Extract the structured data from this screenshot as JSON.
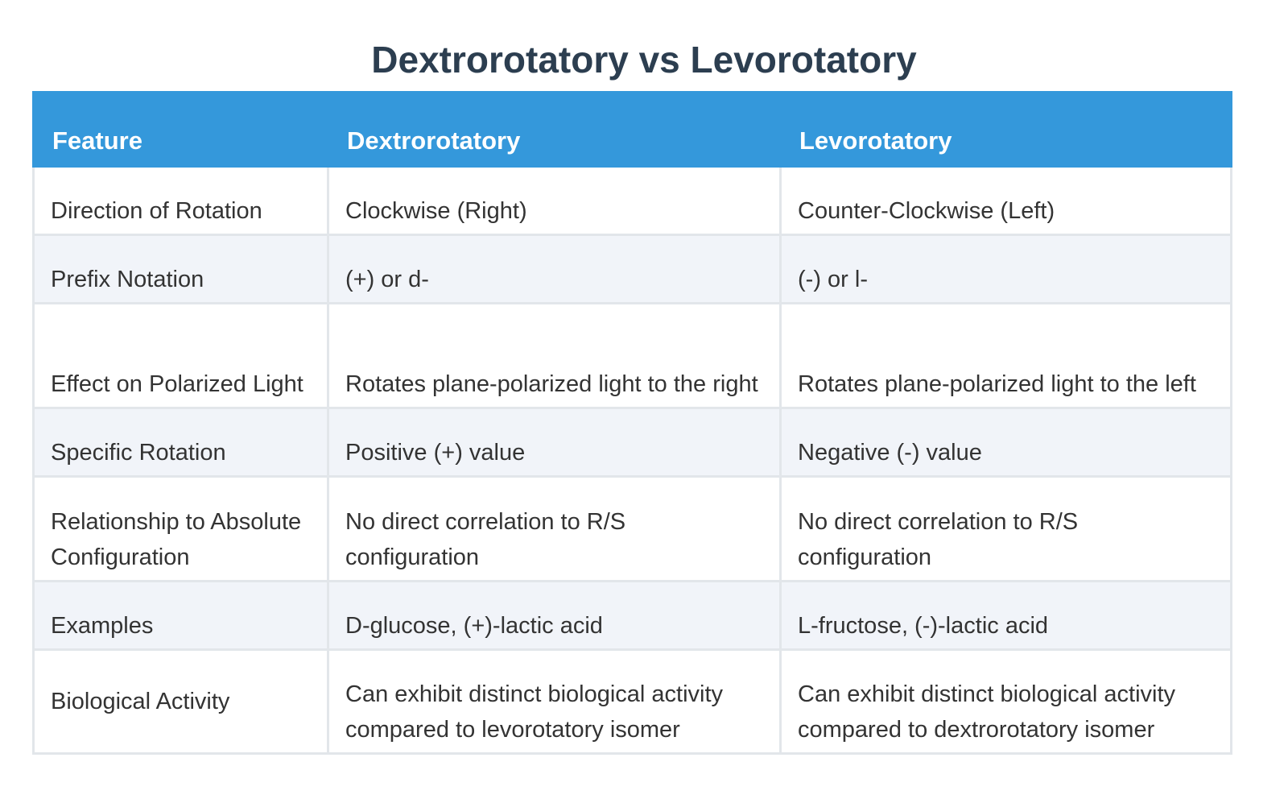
{
  "title": "Dextrorotatory vs Levorotatory",
  "table": {
    "headers": [
      "Feature",
      "Dextrorotatory",
      "Levorotatory"
    ],
    "rows": [
      [
        "Direction of Rotation",
        "Clockwise (Right)",
        "Counter-Clockwise (Left)"
      ],
      [
        "Prefix Notation",
        "(+) or d-",
        "(-) or l-"
      ],
      [
        "Effect on Polarized Light",
        "Rotates plane-polarized light to the right",
        "Rotates plane-polarized light to the left"
      ],
      [
        "Specific Rotation",
        "Positive (+) value",
        "Negative (-) value"
      ],
      [
        "Relationship to Absolute Configuration",
        "No direct correlation to R/S configuration",
        "No direct correlation to R/S configuration"
      ],
      [
        "Examples",
        "D-glucose, (+)-lactic acid",
        "L-fructose, (-)-lactic acid"
      ],
      [
        "Biological Activity",
        "Can exhibit distinct biological activity compared to levorotatory isomer",
        "Can exhibit distinct biological activity compared to dextrorotatory isomer"
      ]
    ]
  },
  "colors": {
    "header_bg": "#3498db",
    "title": "#2c3e50",
    "row_alt_bg": "#f1f4f9",
    "border": "#e2e6ea"
  }
}
